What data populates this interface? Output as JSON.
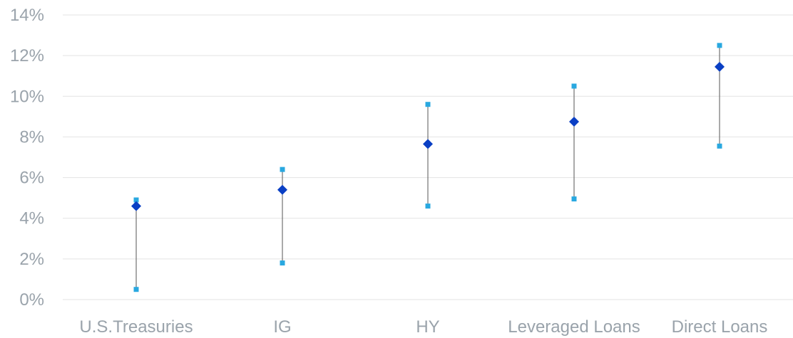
{
  "chart_data": {
    "type": "scatter",
    "title": "",
    "xlabel": "",
    "ylabel": "",
    "categories": [
      "U.S.Treasuries",
      "IG",
      "HY",
      "Leveraged Loans",
      "Direct Loans"
    ],
    "y_ticks": [
      "0%",
      "2%",
      "4%",
      "6%",
      "8%",
      "10%",
      "12%",
      "14%"
    ],
    "ylim": [
      0,
      14
    ],
    "grid": true,
    "legend": "none",
    "series": [
      {
        "role": "range-high",
        "marker": "square",
        "color": "#29a8e0",
        "values": [
          4.9,
          6.4,
          9.6,
          10.5,
          12.5
        ]
      },
      {
        "role": "range-low",
        "marker": "square",
        "color": "#29a8e0",
        "values": [
          0.5,
          1.8,
          4.6,
          4.95,
          7.55
        ]
      },
      {
        "role": "point",
        "marker": "diamond",
        "color": "#0a3fc4",
        "values": [
          4.6,
          5.4,
          7.65,
          8.75,
          11.45
        ]
      }
    ],
    "range_line_color": "#555555"
  }
}
